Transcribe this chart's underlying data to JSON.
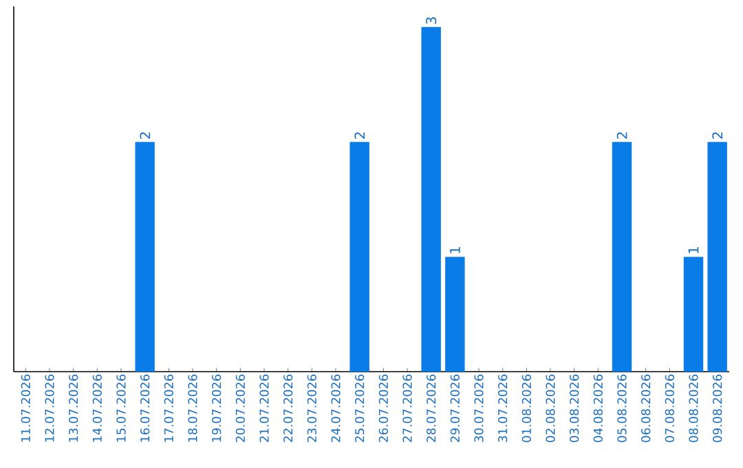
{
  "chart_data": {
    "type": "bar",
    "categories": [
      "11.07.2026",
      "12.07.2026",
      "13.07.2026",
      "14.07.2026",
      "15.07.2026",
      "16.07.2026",
      "17.07.2026",
      "18.07.2026",
      "19.07.2026",
      "20.07.2026",
      "21.07.2026",
      "22.07.2026",
      "23.07.2026",
      "24.07.2026",
      "25.07.2026",
      "26.07.2026",
      "27.07.2026",
      "28.07.2026",
      "29.07.2026",
      "30.07.2026",
      "31.07.2026",
      "01.08.2026",
      "02.08.2026",
      "03.08.2026",
      "04.08.2026",
      "05.08.2026",
      "06.08.2026",
      "07.08.2026",
      "08.08.2026",
      "09.08.2026"
    ],
    "values": [
      0,
      0,
      0,
      0,
      0,
      2,
      0,
      0,
      0,
      0,
      0,
      0,
      0,
      0,
      2,
      0,
      0,
      3,
      1,
      0,
      0,
      0,
      0,
      0,
      0,
      2,
      0,
      0,
      1,
      2
    ],
    "value_labels": [
      null,
      null,
      null,
      null,
      null,
      "2",
      null,
      null,
      null,
      null,
      null,
      null,
      null,
      null,
      "2",
      null,
      null,
      "3",
      "1",
      null,
      null,
      null,
      null,
      null,
      null,
      "2",
      null,
      null,
      "1",
      "2"
    ],
    "color": "#0a7ce8"
  }
}
